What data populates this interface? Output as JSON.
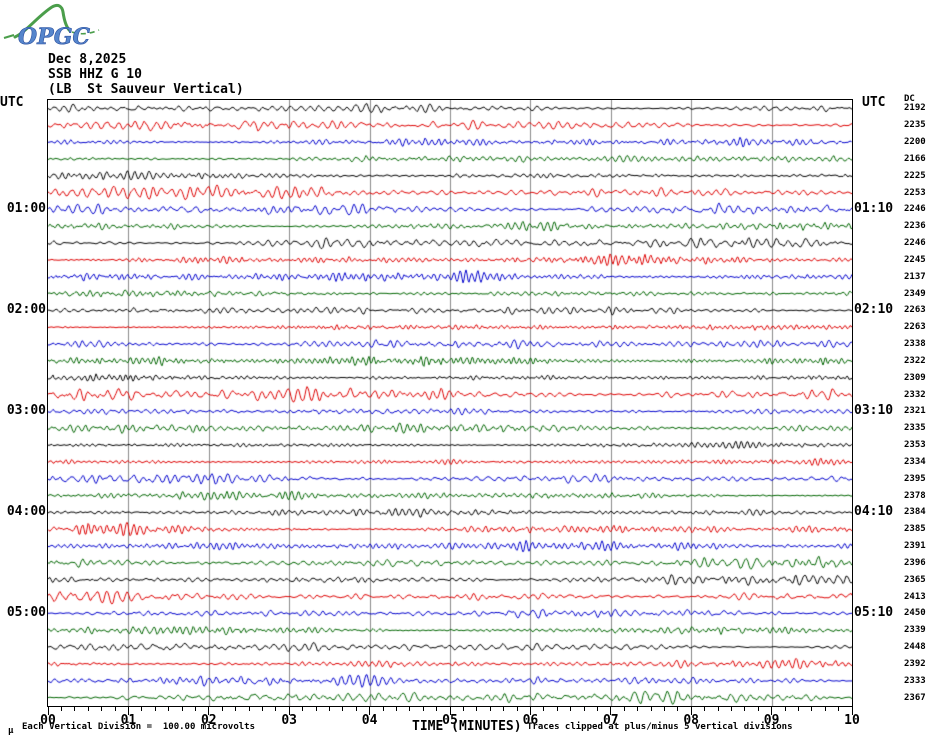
{
  "logo": {
    "text": "OPGC"
  },
  "header": {
    "date": "Dec 8,2025",
    "station": "SSB HHZ G 10",
    "location": "(LB  St Sauveur Vertical)"
  },
  "plot": {
    "left_header": "UTC",
    "right_header": "UTC"
  },
  "footer": {
    "micro_mark": "μ"
  },
  "chart_data": {
    "type": "line",
    "subtype": "helicorder-seismogram",
    "title": "SSB HHZ G 10",
    "date": "Dec 8,2025",
    "station": "(LB  St Sauveur Vertical)",
    "xlabel": "TIME (MINUTES)",
    "x_tick_labels": [
      "00",
      "01",
      "02",
      "03",
      "04",
      "05",
      "06",
      "07",
      "08",
      "09",
      "10"
    ],
    "x_range_minutes": [
      0,
      10
    ],
    "minor_ticks_per_minute": 5,
    "rows": 36,
    "minutes_per_row": 10,
    "grid": "vertical gridline at each minute",
    "trace_color_cycle": [
      "#000000",
      "#dd0000",
      "#0000cc",
      "#006600"
    ],
    "left_time_labels": [
      {
        "row": 7,
        "label": "01:00"
      },
      {
        "row": 13,
        "label": "02:00"
      },
      {
        "row": 19,
        "label": "03:00"
      },
      {
        "row": 25,
        "label": "04:00"
      },
      {
        "row": 31,
        "label": "05:00"
      }
    ],
    "right_time_labels": [
      {
        "row": 7,
        "label": "01:10"
      },
      {
        "row": 13,
        "label": "02:10"
      },
      {
        "row": 19,
        "label": "03:10"
      },
      {
        "row": 25,
        "label": "04:10"
      },
      {
        "row": 31,
        "label": "05:10"
      }
    ],
    "dc_column_header": "DC",
    "dc_offsets": [
      2192,
      2235,
      2200,
      2166,
      2225,
      2253,
      2246,
      2236,
      2246,
      2245,
      2137,
      2349,
      2263,
      2263,
      2338,
      2322,
      2309,
      2332,
      2321,
      2335,
      2353,
      2334,
      2395,
      2378,
      2384,
      2385,
      2391,
      2396,
      2365,
      2413,
      2450,
      2339,
      2448,
      2392,
      2333,
      2367
    ],
    "scale_note": "Each Vertical Division =  100.00 microvolts",
    "clip_note": "Traces clipped at plus/minus 5 vertical divisions"
  }
}
